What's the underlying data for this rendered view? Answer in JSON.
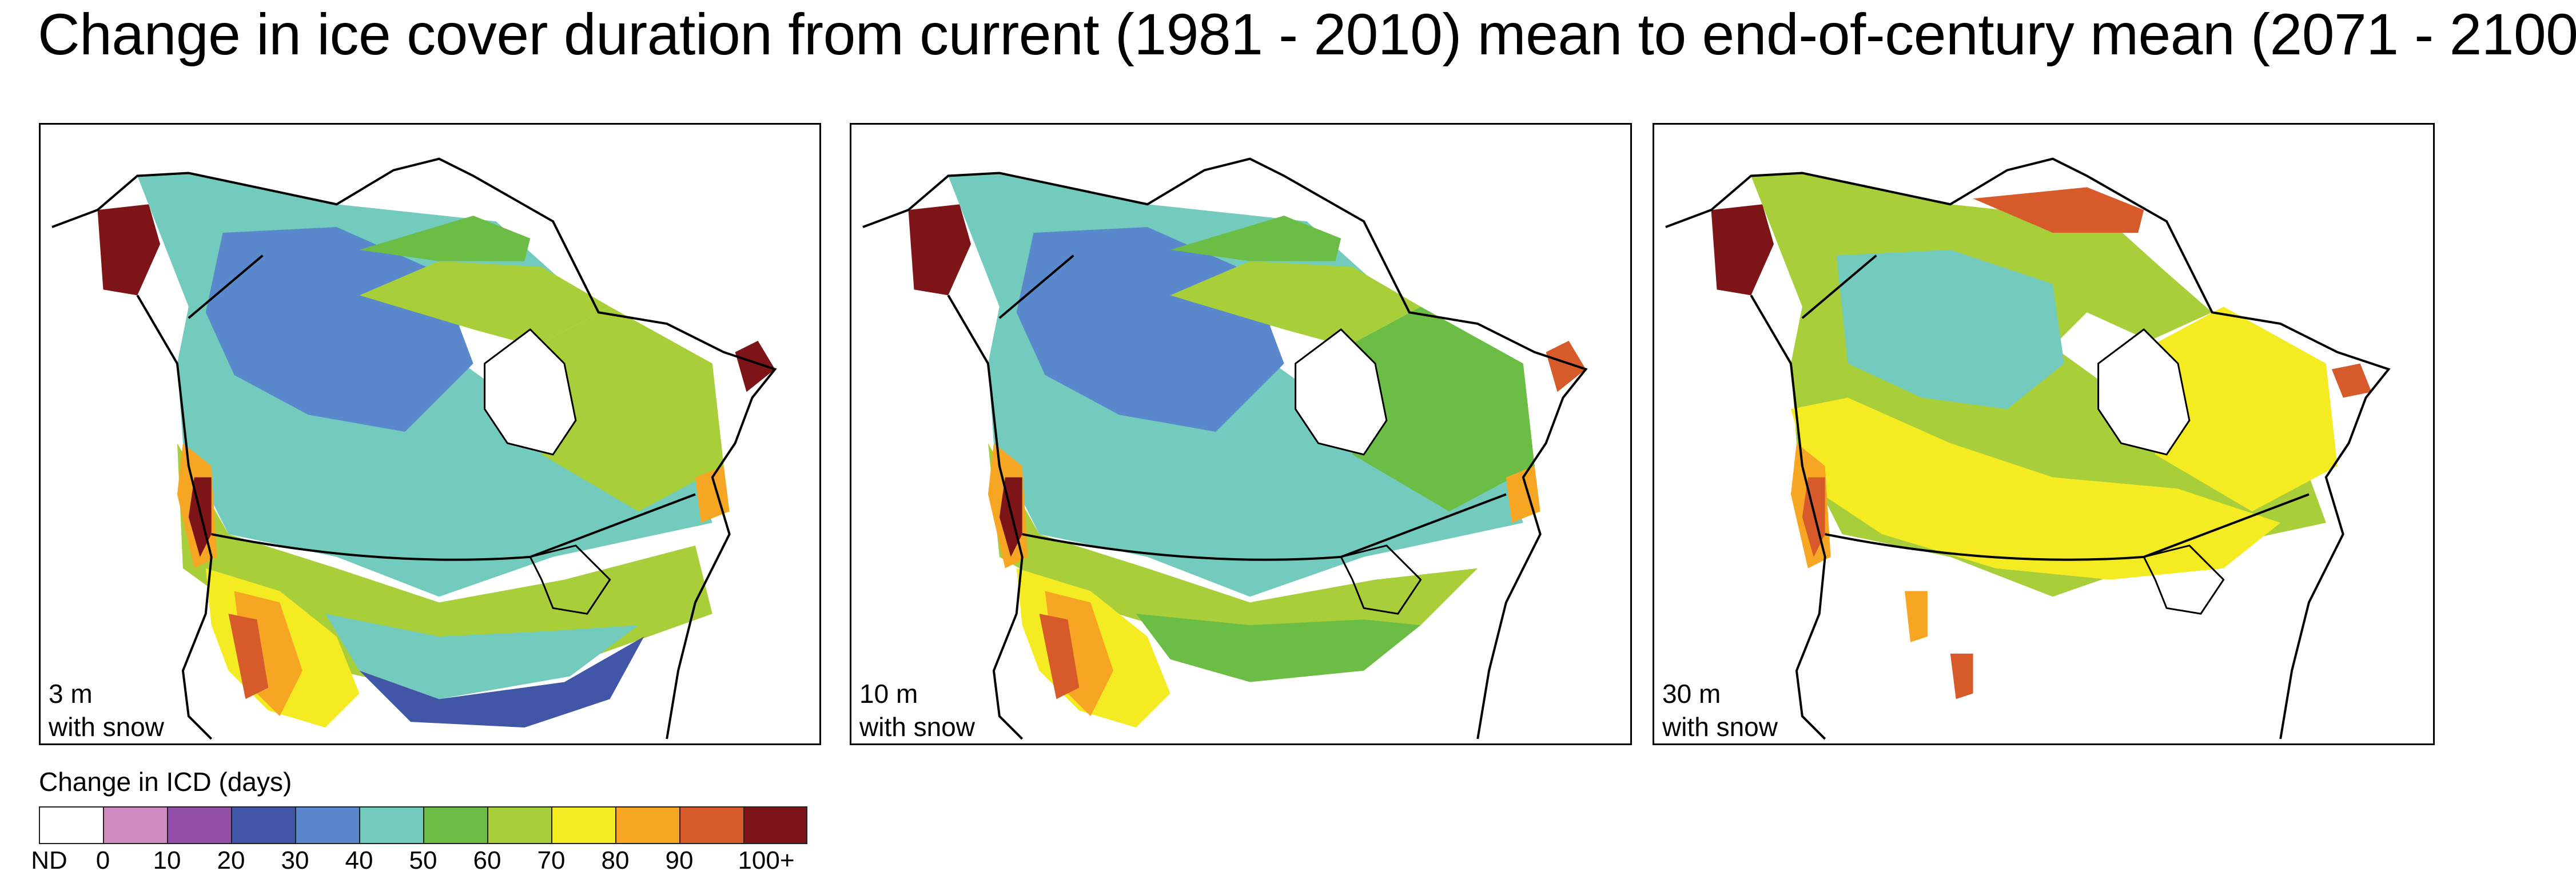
{
  "title": "Change in ice cover duration from current (1981 - 2010) mean to end-of-century mean (2071 - 2100)",
  "panels": [
    {
      "depth": "3 m",
      "note": "with snow"
    },
    {
      "depth": "10 m",
      "note": "with snow"
    },
    {
      "depth": "30 m",
      "note": "with snow"
    }
  ],
  "legend": {
    "title": "Change in ICD (days)",
    "colors": [
      "#ffffff",
      "#d08cc0",
      "#9450a8",
      "#4256a8",
      "#5a88cc",
      "#72cbbd",
      "#6cbd45",
      "#a8cf3a",
      "#f5eb23",
      "#f7a623",
      "#d65a2a",
      "#7d1518"
    ],
    "ticks": [
      "ND",
      "0",
      "10",
      "20",
      "30",
      "40",
      "50",
      "60",
      "70",
      "80",
      "90",
      "100+"
    ]
  }
}
